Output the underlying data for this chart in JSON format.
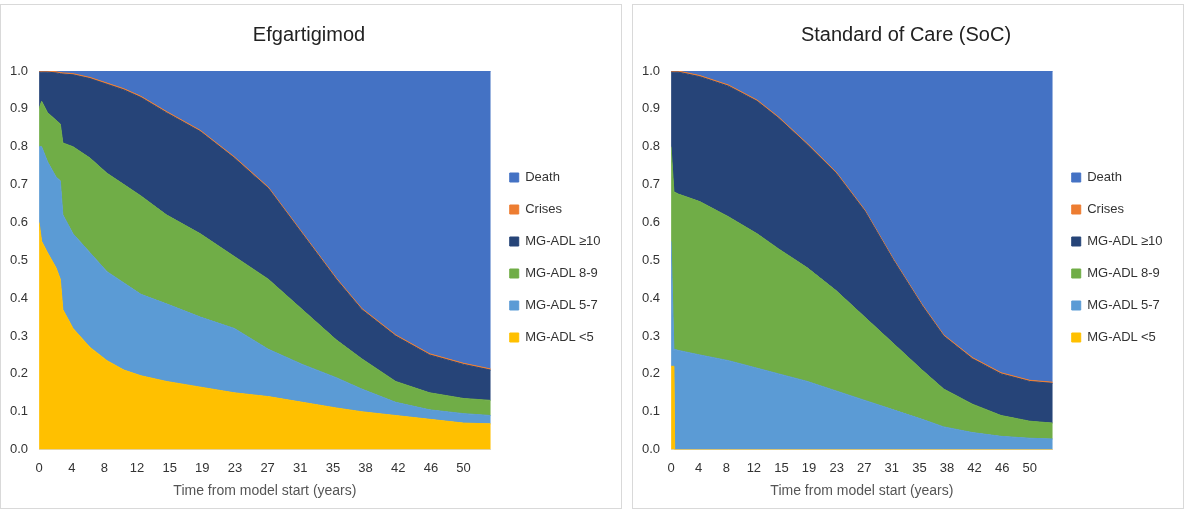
{
  "chart_data": [
    {
      "type": "area",
      "title": "Efgartigimod",
      "xlabel": "Time from model start (years)",
      "stacked": true,
      "legend": "right",
      "grid": false,
      "x": [
        0,
        0.3,
        1,
        2,
        2.5,
        2.8,
        4,
        6,
        8,
        10,
        12,
        15,
        19,
        23,
        27,
        31,
        35,
        38,
        42,
        46,
        50,
        53.2
      ],
      "xlim": [
        0,
        53.2
      ],
      "xticks": [
        {
          "value": 0,
          "label": "0"
        },
        {
          "value": 3.85,
          "label": "4"
        },
        {
          "value": 7.69,
          "label": "8"
        },
        {
          "value": 11.54,
          "label": "12"
        },
        {
          "value": 15.38,
          "label": "15"
        },
        {
          "value": 19.23,
          "label": "19"
        },
        {
          "value": 23.08,
          "label": "23"
        },
        {
          "value": 26.92,
          "label": "27"
        },
        {
          "value": 30.77,
          "label": "31"
        },
        {
          "value": 34.62,
          "label": "35"
        },
        {
          "value": 38.46,
          "label": "38"
        },
        {
          "value": 42.31,
          "label": "42"
        },
        {
          "value": 46.15,
          "label": "46"
        },
        {
          "value": 50,
          "label": "50"
        }
      ],
      "ylim": [
        0,
        1
      ],
      "yticks": [
        {
          "value": 0,
          "label": "0.0"
        },
        {
          "value": 0.1,
          "label": "0.1"
        },
        {
          "value": 0.2,
          "label": "0.2"
        },
        {
          "value": 0.3,
          "label": "0.3"
        },
        {
          "value": 0.4,
          "label": "0.4"
        },
        {
          "value": 0.5,
          "label": "0.5"
        },
        {
          "value": 0.6,
          "label": "0.6"
        },
        {
          "value": 0.7,
          "label": "0.7"
        },
        {
          "value": 0.8,
          "label": "0.8"
        },
        {
          "value": 0.9,
          "label": "0.9"
        },
        {
          "value": 1,
          "label": "1.0"
        }
      ],
      "series": [
        {
          "name": "MG-ADL <5",
          "color": "#ffc000",
          "values": [
            0.6,
            0.55,
            0.52,
            0.48,
            0.45,
            0.37,
            0.32,
            0.27,
            0.235,
            0.21,
            0.195,
            0.18,
            0.165,
            0.15,
            0.14,
            0.125,
            0.11,
            0.1,
            0.09,
            0.08,
            0.07,
            0.068
          ]
        },
        {
          "name": "MG-ADL 5-7",
          "color": "#5b9bd5",
          "values": [
            0.2,
            0.25,
            0.24,
            0.24,
            0.26,
            0.25,
            0.25,
            0.25,
            0.235,
            0.23,
            0.215,
            0.205,
            0.185,
            0.17,
            0.125,
            0.1,
            0.08,
            0.06,
            0.035,
            0.025,
            0.025,
            0.022
          ]
        },
        {
          "name": "MG-ADL 8-9",
          "color": "#70ad47",
          "values": [
            0.1,
            0.12,
            0.13,
            0.15,
            0.15,
            0.19,
            0.23,
            0.25,
            0.26,
            0.26,
            0.26,
            0.235,
            0.22,
            0.19,
            0.185,
            0.145,
            0.1,
            0.08,
            0.055,
            0.045,
            0.04,
            0.04
          ]
        },
        {
          "name": "MG-ADL ≥10",
          "color": "#264478",
          "values": [
            0.097,
            0.077,
            0.107,
            0.125,
            0.133,
            0.182,
            0.19,
            0.21,
            0.235,
            0.25,
            0.26,
            0.27,
            0.27,
            0.26,
            0.24,
            0.2,
            0.16,
            0.13,
            0.12,
            0.1,
            0.09,
            0.08
          ]
        },
        {
          "name": "Crises",
          "color": "#ed7d31",
          "values": [
            0.003,
            0.003,
            0.003,
            0.003,
            0.003,
            0.003,
            0.003,
            0.003,
            0.003,
            0.003,
            0.003,
            0.003,
            0.003,
            0.003,
            0.003,
            0.003,
            0.003,
            0.003,
            0.003,
            0.003,
            0.003,
            0.003
          ]
        },
        {
          "name": "Death",
          "color": "#4472c4",
          "values": [
            0,
            0,
            0,
            0.002,
            0.004,
            0.005,
            0.007,
            0.017,
            0.032,
            0.047,
            0.067,
            0.107,
            0.157,
            0.227,
            0.307,
            0.427,
            0.547,
            0.627,
            0.697,
            0.747,
            0.772,
            0.787
          ]
        }
      ]
    },
    {
      "type": "area",
      "title": "Standard of Care (SoC)",
      "xlabel": "Time from model start (years)",
      "stacked": true,
      "legend": "right",
      "grid": false,
      "x": [
        0,
        0.4,
        0.5,
        1,
        4,
        8,
        12,
        15,
        19,
        23,
        27,
        31,
        35,
        38,
        42,
        46,
        50,
        53.2
      ],
      "xlim": [
        0,
        53.2
      ],
      "xticks": [
        {
          "value": 0,
          "label": "0"
        },
        {
          "value": 3.85,
          "label": "4"
        },
        {
          "value": 7.69,
          "label": "8"
        },
        {
          "value": 11.54,
          "label": "12"
        },
        {
          "value": 15.38,
          "label": "15"
        },
        {
          "value": 19.23,
          "label": "19"
        },
        {
          "value": 23.08,
          "label": "23"
        },
        {
          "value": 26.92,
          "label": "27"
        },
        {
          "value": 30.77,
          "label": "31"
        },
        {
          "value": 34.62,
          "label": "35"
        },
        {
          "value": 38.46,
          "label": "38"
        },
        {
          "value": 42.31,
          "label": "42"
        },
        {
          "value": 46.15,
          "label": "46"
        },
        {
          "value": 50,
          "label": "50"
        }
      ],
      "ylim": [
        0,
        1
      ],
      "yticks": [
        {
          "value": 0,
          "label": "0.0"
        },
        {
          "value": 0.1,
          "label": "0.1"
        },
        {
          "value": 0.2,
          "label": "0.2"
        },
        {
          "value": 0.3,
          "label": "0.3"
        },
        {
          "value": 0.4,
          "label": "0.4"
        },
        {
          "value": 0.5,
          "label": "0.5"
        },
        {
          "value": 0.6,
          "label": "0.6"
        },
        {
          "value": 0.7,
          "label": "0.7"
        },
        {
          "value": 0.8,
          "label": "0.8"
        },
        {
          "value": 0.9,
          "label": "0.9"
        },
        {
          "value": 1,
          "label": "1.0"
        }
      ],
      "series": [
        {
          "name": "MG-ADL <5",
          "color": "#ffc000",
          "values": [
            0.22,
            0.22,
            0,
            0,
            0,
            0,
            0,
            0,
            0,
            0,
            0,
            0,
            0,
            0,
            0,
            0,
            0,
            0
          ]
        },
        {
          "name": "MG-ADL 5-7",
          "color": "#5b9bd5",
          "values": [
            0.33,
            0.04,
            0.265,
            0.262,
            0.25,
            0.235,
            0.215,
            0.2,
            0.18,
            0.155,
            0.13,
            0.105,
            0.08,
            0.06,
            0.045,
            0.035,
            0.03,
            0.028
          ]
        },
        {
          "name": "MG-ADL 8-9",
          "color": "#70ad47",
          "values": [
            0.25,
            0.42,
            0.415,
            0.413,
            0.405,
            0.38,
            0.355,
            0.33,
            0.3,
            0.265,
            0.22,
            0.175,
            0.13,
            0.1,
            0.075,
            0.055,
            0.045,
            0.042
          ]
        },
        {
          "name": "MG-ADL ≥10",
          "color": "#264478",
          "values": [
            0.197,
            0.317,
            0.317,
            0.322,
            0.33,
            0.345,
            0.35,
            0.345,
            0.325,
            0.31,
            0.28,
            0.22,
            0.17,
            0.14,
            0.12,
            0.11,
            0.105,
            0.105
          ]
        },
        {
          "name": "Crises",
          "color": "#ed7d31",
          "values": [
            0.003,
            0.003,
            0.003,
            0.003,
            0.003,
            0.003,
            0.003,
            0.003,
            0.003,
            0.003,
            0.003,
            0.003,
            0.003,
            0.003,
            0.003,
            0.003,
            0.003,
            0.003
          ]
        },
        {
          "name": "Death",
          "color": "#4472c4",
          "values": [
            0,
            0,
            0,
            0,
            0.012,
            0.037,
            0.077,
            0.122,
            0.192,
            0.267,
            0.367,
            0.497,
            0.617,
            0.697,
            0.757,
            0.797,
            0.817,
            0.822
          ]
        }
      ]
    }
  ]
}
